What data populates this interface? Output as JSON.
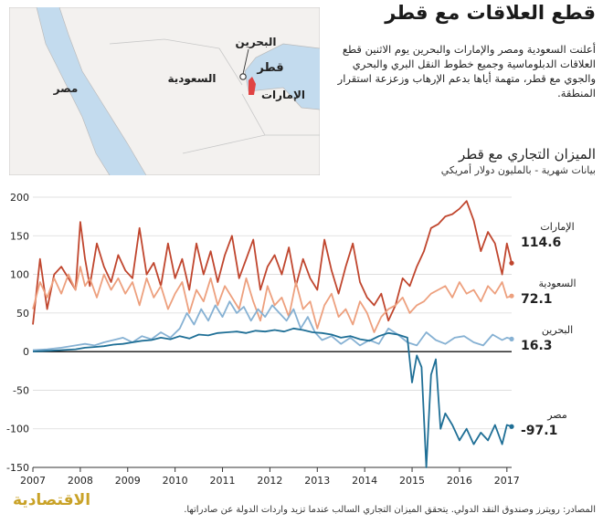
{
  "colors": {
    "uae": "#c0462e",
    "saudi": "#eda07e",
    "bahrain": "#86b1d3",
    "egypt": "#1f6f96",
    "map_land": "#f3f1ef",
    "map_water": "#c3dbee",
    "qatar": "#e04343",
    "logo": "#c9a227"
  },
  "header": {
    "headline": "قطع العلاقات مع قطر",
    "intro": "أعلنت السعودية ومصر والإمارات والبحرين يوم الاثنين قطع العلاقات الدبلوماسية وجميع خطوط النقل البري والبحري والجوي مع قطر، متهمة أياها بدعم الإرهاب وزعزعة استقرار المنطقة."
  },
  "map": {
    "labels": {
      "egypt": "مصر",
      "saudi": "السعودية",
      "bahrain": "البحرين",
      "qatar": "قطر",
      "uae": "الإمارات"
    }
  },
  "footer": {
    "source": "المصادر: رويترز وصندوق النقد الدولي. يتحقق الميزان التجاري السالب عندما تزيد واردات الدولة عن صادراتها.",
    "logo": "الاقتصادية"
  },
  "chart_data": {
    "type": "line",
    "title": "الميزان التجاري مع قطر",
    "subtitle": "بيانات شهرية - بالمليون دولار أمريكي",
    "x_years": [
      "2007",
      "2008",
      "2009",
      "2010",
      "2011",
      "2012",
      "2013",
      "2014",
      "2015",
      "2016",
      "2017"
    ],
    "x_range": [
      2007.0,
      2017.1
    ],
    "ylim": [
      -150,
      200
    ],
    "yticks": [
      200,
      150,
      100,
      50,
      0,
      -50,
      -100,
      -150
    ],
    "series": [
      {
        "key": "uae",
        "name": "الإمارات",
        "last_value": "114.6",
        "color_key": "uae",
        "x": [
          2007.0,
          2007.15,
          2007.3,
          2007.45,
          2007.6,
          2007.75,
          2007.9,
          2008.0,
          2008.1,
          2008.2,
          2008.35,
          2008.5,
          2008.65,
          2008.8,
          2008.95,
          2009.1,
          2009.25,
          2009.4,
          2009.55,
          2009.7,
          2009.85,
          2010.0,
          2010.15,
          2010.3,
          2010.45,
          2010.6,
          2010.75,
          2010.9,
          2011.05,
          2011.2,
          2011.35,
          2011.5,
          2011.65,
          2011.8,
          2011.95,
          2012.1,
          2012.25,
          2012.4,
          2012.55,
          2012.7,
          2012.85,
          2013.0,
          2013.15,
          2013.3,
          2013.45,
          2013.6,
          2013.75,
          2013.9,
          2014.05,
          2014.2,
          2014.35,
          2014.5,
          2014.65,
          2014.8,
          2014.95,
          2015.1,
          2015.25,
          2015.4,
          2015.55,
          2015.7,
          2015.85,
          2016.0,
          2016.15,
          2016.3,
          2016.45,
          2016.6,
          2016.75,
          2016.9,
          2017.0,
          2017.1
        ],
        "y": [
          35,
          120,
          55,
          100,
          110,
          95,
          80,
          168,
          120,
          85,
          140,
          110,
          90,
          125,
          105,
          95,
          160,
          100,
          115,
          85,
          140,
          95,
          120,
          80,
          140,
          100,
          130,
          90,
          125,
          150,
          95,
          120,
          145,
          80,
          110,
          125,
          100,
          135,
          85,
          120,
          95,
          80,
          145,
          105,
          75,
          110,
          140,
          90,
          70,
          60,
          75,
          40,
          60,
          95,
          85,
          110,
          130,
          160,
          165,
          175,
          178,
          185,
          195,
          170,
          130,
          155,
          140,
          100,
          140,
          114.6
        ]
      },
      {
        "key": "saudi",
        "name": "السعودية",
        "last_value": "72.1",
        "color_key": "saudi",
        "x": [
          2007.0,
          2007.15,
          2007.3,
          2007.45,
          2007.6,
          2007.75,
          2007.9,
          2008.0,
          2008.1,
          2008.2,
          2008.35,
          2008.5,
          2008.65,
          2008.8,
          2008.95,
          2009.1,
          2009.25,
          2009.4,
          2009.55,
          2009.7,
          2009.85,
          2010.0,
          2010.15,
          2010.3,
          2010.45,
          2010.6,
          2010.75,
          2010.9,
          2011.05,
          2011.2,
          2011.35,
          2011.5,
          2011.65,
          2011.8,
          2011.95,
          2012.1,
          2012.25,
          2012.4,
          2012.55,
          2012.7,
          2012.85,
          2013.0,
          2013.15,
          2013.3,
          2013.45,
          2013.6,
          2013.75,
          2013.9,
          2014.05,
          2014.2,
          2014.35,
          2014.5,
          2014.65,
          2014.8,
          2014.95,
          2015.1,
          2015.25,
          2015.4,
          2015.55,
          2015.7,
          2015.85,
          2016.0,
          2016.15,
          2016.3,
          2016.45,
          2016.6,
          2016.75,
          2016.9,
          2017.0,
          2017.1
        ],
        "y": [
          55,
          90,
          70,
          95,
          75,
          100,
          80,
          110,
          85,
          95,
          70,
          100,
          80,
          95,
          75,
          90,
          60,
          95,
          70,
          85,
          55,
          75,
          90,
          50,
          80,
          65,
          95,
          60,
          85,
          70,
          55,
          95,
          65,
          40,
          85,
          60,
          70,
          45,
          90,
          55,
          65,
          30,
          60,
          75,
          45,
          55,
          35,
          65,
          50,
          25,
          45,
          55,
          60,
          70,
          50,
          60,
          65,
          75,
          80,
          85,
          70,
          90,
          75,
          80,
          65,
          85,
          75,
          90,
          70,
          72.1
        ]
      },
      {
        "key": "bahrain",
        "name": "البحرين",
        "last_value": "16.3",
        "color_key": "bahrain",
        "x": [
          2007.0,
          2007.3,
          2007.6,
          2007.9,
          2008.1,
          2008.3,
          2008.5,
          2008.7,
          2008.9,
          2009.1,
          2009.3,
          2009.5,
          2009.7,
          2009.9,
          2010.1,
          2010.25,
          2010.4,
          2010.55,
          2010.7,
          2010.85,
          2011.0,
          2011.15,
          2011.3,
          2011.45,
          2011.6,
          2011.75,
          2011.9,
          2012.05,
          2012.2,
          2012.35,
          2012.5,
          2012.65,
          2012.8,
          2012.95,
          2013.1,
          2013.3,
          2013.5,
          2013.7,
          2013.9,
          2014.1,
          2014.3,
          2014.5,
          2014.7,
          2014.9,
          2015.1,
          2015.3,
          2015.5,
          2015.7,
          2015.9,
          2016.1,
          2016.3,
          2016.5,
          2016.7,
          2016.9,
          2017.0,
          2017.1
        ],
        "y": [
          2,
          3,
          5,
          8,
          10,
          8,
          12,
          15,
          18,
          12,
          20,
          16,
          25,
          18,
          30,
          50,
          35,
          55,
          40,
          60,
          45,
          65,
          50,
          58,
          40,
          55,
          45,
          60,
          50,
          40,
          55,
          30,
          45,
          25,
          15,
          20,
          10,
          18,
          8,
          15,
          10,
          30,
          22,
          12,
          8,
          25,
          15,
          10,
          18,
          20,
          12,
          8,
          22,
          15,
          18,
          16.3
        ]
      },
      {
        "key": "egypt",
        "name": "مصر",
        "last_value": "-97.1",
        "color_key": "egypt",
        "x": [
          2007.0,
          2007.3,
          2007.6,
          2007.9,
          2008.1,
          2008.3,
          2008.5,
          2008.7,
          2008.9,
          2009.1,
          2009.3,
          2009.5,
          2009.7,
          2009.9,
          2010.1,
          2010.3,
          2010.5,
          2010.7,
          2010.9,
          2011.1,
          2011.3,
          2011.5,
          2011.7,
          2011.9,
          2012.1,
          2012.3,
          2012.5,
          2012.7,
          2012.9,
          2013.1,
          2013.3,
          2013.5,
          2013.7,
          2013.9,
          2014.1,
          2014.3,
          2014.5,
          2014.7,
          2014.9,
          2015.0,
          2015.1,
          2015.2,
          2015.3,
          2015.4,
          2015.5,
          2015.6,
          2015.7,
          2015.85,
          2016.0,
          2016.15,
          2016.3,
          2016.45,
          2016.6,
          2016.75,
          2016.9,
          2017.0,
          2017.1
        ],
        "y": [
          0,
          1,
          2,
          3,
          5,
          6,
          7,
          9,
          10,
          12,
          14,
          15,
          18,
          16,
          20,
          17,
          22,
          21,
          24,
          25,
          26,
          24,
          27,
          26,
          28,
          26,
          30,
          28,
          25,
          24,
          22,
          18,
          20,
          16,
          14,
          20,
          24,
          22,
          18,
          -40,
          -5,
          -20,
          -150,
          -30,
          -10,
          -100,
          -80,
          -95,
          -115,
          -100,
          -120,
          -105,
          -115,
          -95,
          -120,
          -95,
          -97.1
        ]
      }
    ]
  }
}
